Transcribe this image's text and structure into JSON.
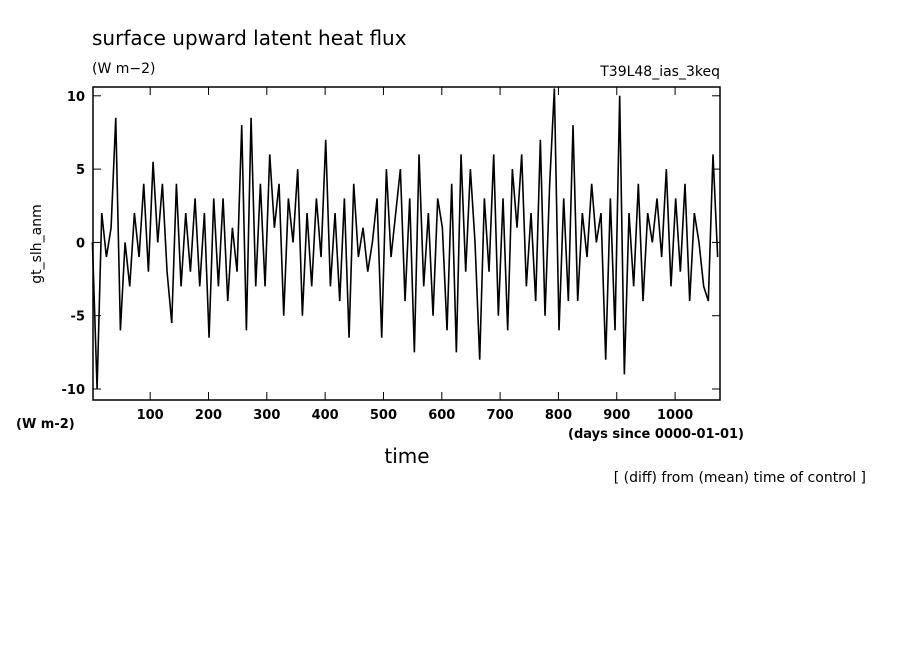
{
  "chart_data": {
    "type": "line",
    "title": "surface upward latent heat flux",
    "units_top": "(W m−2)",
    "run_name": "T39L48_ias_3keq",
    "y_label": "gt_slh_anm",
    "units_left": "(W m-2)",
    "x_units": "(days since 0000-01-01)",
    "x_label": "time",
    "note": "[ (diff) from (mean) time of control ]",
    "xlim": [
      2,
      1077
    ],
    "xticks": [
      100,
      200,
      300,
      400,
      500,
      600,
      700,
      800,
      900,
      1000
    ],
    "ylim": [
      -10.75,
      10.6
    ],
    "yticks": [
      -10,
      -5,
      0,
      5,
      10
    ],
    "series": [
      {
        "color": "#000000",
        "x": [
          1,
          9,
          17,
          25,
          33,
          41,
          49,
          57,
          65,
          73,
          81,
          89,
          97,
          105,
          113,
          121,
          129,
          137,
          145,
          153,
          161,
          169,
          177,
          185,
          193,
          201,
          209,
          217,
          225,
          233,
          241,
          249,
          257,
          265,
          273,
          281,
          289,
          297,
          305,
          313,
          321,
          329,
          337,
          345,
          353,
          361,
          369,
          377,
          385,
          393,
          401,
          409,
          417,
          425,
          433,
          441,
          449,
          457,
          465,
          473,
          481,
          489,
          497,
          505,
          513,
          521,
          529,
          537,
          545,
          553,
          561,
          569,
          577,
          585,
          593,
          601,
          609,
          617,
          625,
          633,
          641,
          649,
          657,
          665,
          673,
          681,
          689,
          697,
          705,
          713,
          721,
          729,
          737,
          745,
          753,
          761,
          769,
          777,
          785,
          793,
          801,
          809,
          817,
          825,
          833,
          841,
          849,
          857,
          865,
          873,
          881,
          889,
          897,
          905,
          913,
          921,
          929,
          937,
          945,
          953,
          961,
          969,
          977,
          985,
          993,
          1001,
          1009,
          1017,
          1025,
          1033,
          1041,
          1049,
          1057,
          1065,
          1073
        ],
        "values": [
          0,
          -10,
          2,
          -1,
          1,
          8.5,
          -6,
          0,
          -3,
          2,
          -1,
          4,
          -2,
          5.5,
          0,
          4,
          -2,
          -5.5,
          4,
          -3,
          2,
          -2,
          3,
          -3,
          2,
          -6.5,
          3,
          -3,
          3,
          -4,
          1,
          -2,
          8,
          -6,
          8.5,
          -3,
          4,
          -3,
          6,
          1,
          4,
          -5,
          3,
          0,
          5,
          -5,
          2,
          -3,
          3,
          -1,
          7,
          -3,
          2,
          -4,
          3,
          -6.5,
          4,
          -1,
          1,
          -2,
          0,
          3,
          -6.5,
          5,
          -1,
          2,
          5,
          -4,
          3,
          -7.5,
          6,
          -3,
          2,
          -5,
          3,
          1,
          -6,
          4,
          -7.5,
          6,
          -2,
          5,
          0,
          -8,
          3,
          -2,
          6,
          -5,
          3,
          -6,
          5,
          1,
          6,
          -3,
          2,
          -4,
          7,
          -5,
          4,
          10.5,
          -6,
          3,
          -4,
          8,
          -4,
          2,
          -1,
          4,
          0,
          2,
          -8,
          3,
          -6,
          10,
          -9,
          2,
          -3,
          4,
          -4,
          2,
          0,
          3,
          -1,
          5,
          -3,
          3,
          -2,
          4,
          -4,
          2,
          0,
          -3,
          -4,
          6,
          -1
        ]
      }
    ]
  }
}
